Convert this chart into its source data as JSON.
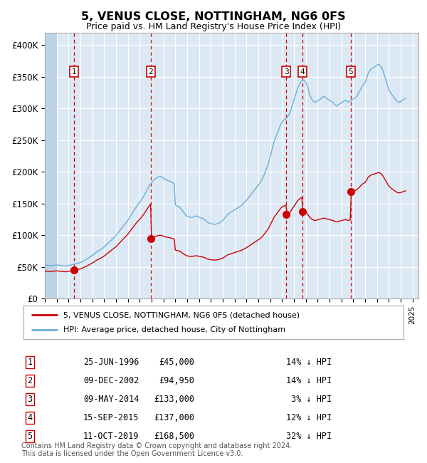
{
  "title": "5, VENUS CLOSE, NOTTINGHAM, NG6 0FS",
  "subtitle": "Price paid vs. HM Land Registry's House Price Index (HPI)",
  "ylim": [
    0,
    420000
  ],
  "xlim_start": 1994.0,
  "xlim_end": 2025.5,
  "yticks": [
    0,
    50000,
    100000,
    150000,
    200000,
    250000,
    300000,
    350000,
    400000
  ],
  "ytick_labels": [
    "£0",
    "£50K",
    "£100K",
    "£150K",
    "£200K",
    "£250K",
    "£300K",
    "£350K",
    "£400K"
  ],
  "background_color": "#ffffff",
  "plot_bg_color": "#dce9f5",
  "grid_color": "#ffffff",
  "hpi_line_color": "#6baed6",
  "price_line_color": "#cc0000",
  "dot_color": "#cc0000",
  "dashed_line_color": "#cc0000",
  "sale_dates_x": [
    1996.48,
    2002.93,
    2014.35,
    2015.7,
    2019.78
  ],
  "sale_prices": [
    45000,
    94950,
    133000,
    137000,
    168500
  ],
  "sale_labels": [
    "1",
    "2",
    "3",
    "4",
    "5"
  ],
  "legend_line1": "5, VENUS CLOSE, NOTTINGHAM, NG6 0FS (detached house)",
  "legend_line2": "HPI: Average price, detached house, City of Nottingham",
  "table_rows": [
    [
      "1",
      "25-JUN-1996",
      "£45,000",
      "14% ↓ HPI"
    ],
    [
      "2",
      "09-DEC-2002",
      "£94,950",
      "14% ↓ HPI"
    ],
    [
      "3",
      "09-MAY-2014",
      "£133,000",
      " 3% ↓ HPI"
    ],
    [
      "4",
      "15-SEP-2015",
      "£137,000",
      "12% ↓ HPI"
    ],
    [
      "5",
      "11-OCT-2019",
      "£168,500",
      "32% ↓ HPI"
    ]
  ],
  "footer_text": "Contains HM Land Registry data © Crown copyright and database right 2024.\nThis data is licensed under the Open Government Licence v3.0."
}
